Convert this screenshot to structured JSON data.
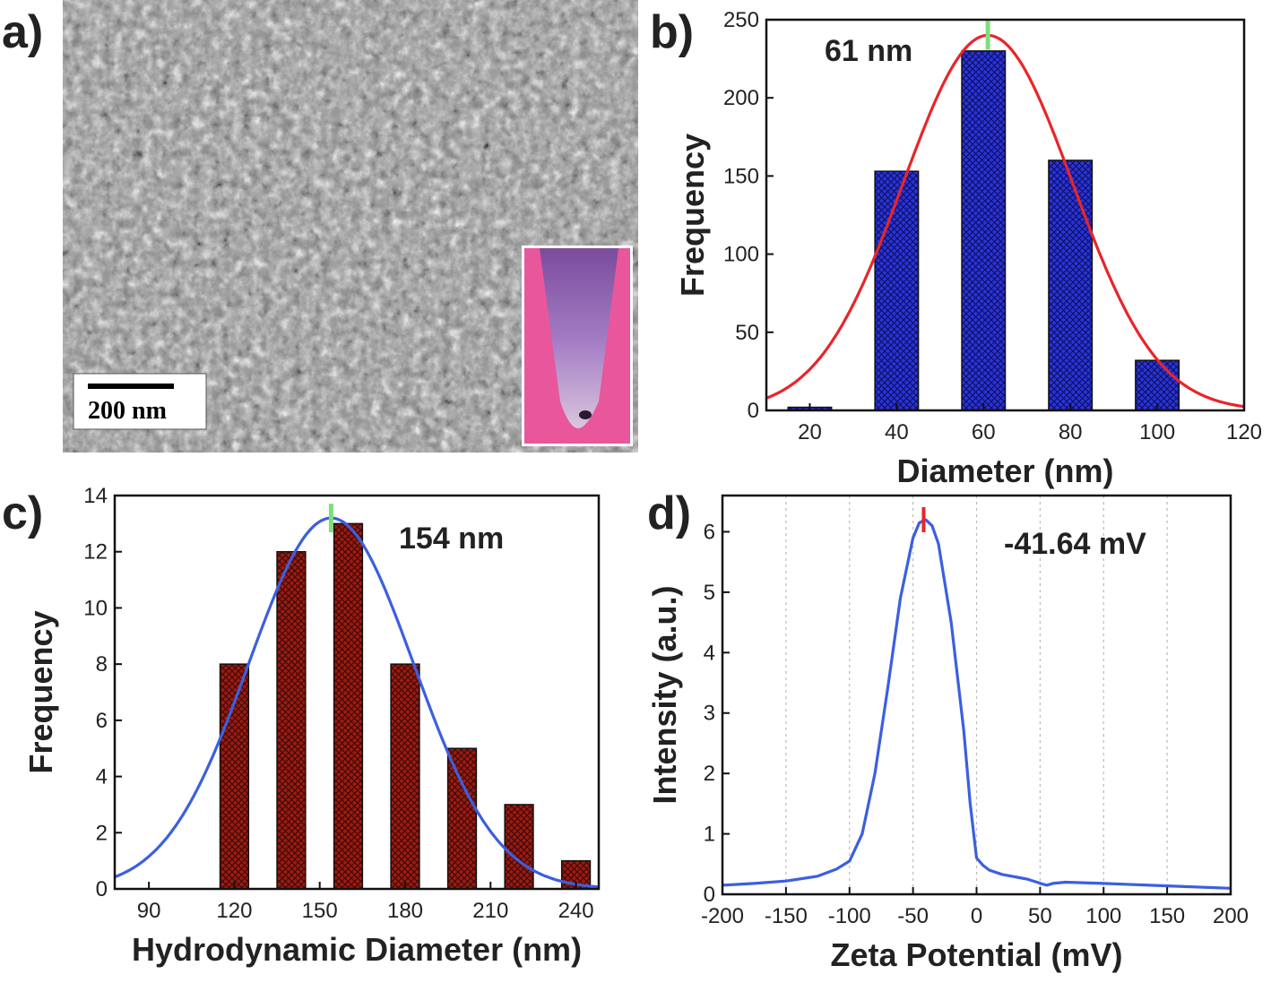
{
  "panels": {
    "a": {
      "letter": "a)",
      "scale_bar_label": "200 nm"
    },
    "b": {
      "letter": "b)"
    },
    "c": {
      "letter": "c)"
    },
    "d": {
      "letter": "d)"
    }
  },
  "colors": {
    "bar_blue": "#2b33d6",
    "bar_red": "#9b1b12",
    "fit_red": "#e8252a",
    "fit_blue": "#3b5fe0",
    "peak_marker_green": "#7be07b",
    "peak_marker_red": "#e8252a",
    "inset_pink": "#e8569c"
  },
  "chart_data": [
    {
      "id": "b",
      "type": "bar",
      "x": [
        20,
        40,
        60,
        80,
        100
      ],
      "values": [
        2,
        153,
        230,
        160,
        32
      ],
      "bar_width": 10,
      "fit": {
        "type": "gaussian",
        "center": 61,
        "amplitude": 240,
        "sigma": 19.5
      },
      "annotation": "61 nm",
      "xlabel": "Diameter (nm)",
      "ylabel": "Frequency",
      "xlim": [
        10,
        120
      ],
      "ylim": [
        0,
        250
      ],
      "xticks": [
        20,
        40,
        60,
        80,
        100,
        120
      ],
      "yticks": [
        0,
        50,
        100,
        150,
        200,
        250
      ],
      "grid": false
    },
    {
      "id": "c",
      "type": "bar",
      "x": [
        120,
        140,
        160,
        180,
        200,
        220,
        240
      ],
      "values": [
        8,
        12,
        13,
        8,
        5,
        3,
        1
      ],
      "bar_width": 10,
      "fit": {
        "type": "gaussian",
        "center": 154,
        "amplitude": 13.2,
        "sigma": 29
      },
      "annotation": "154 nm",
      "xlabel": "Hydrodynamic Diameter (nm)",
      "ylabel": "Frequency",
      "xlim": [
        78,
        248
      ],
      "ylim": [
        0,
        14
      ],
      "xticks": [
        90,
        120,
        150,
        180,
        210,
        240
      ],
      "yticks": [
        0,
        2,
        4,
        6,
        8,
        10,
        12,
        14
      ],
      "grid": false
    },
    {
      "id": "d",
      "type": "line",
      "x": [
        -200,
        -175,
        -150,
        -125,
        -110,
        -100,
        -90,
        -80,
        -70,
        -60,
        -50,
        -45,
        -40,
        -35,
        -30,
        -20,
        -10,
        -5,
        0,
        5,
        10,
        20,
        40,
        55,
        60,
        70,
        100,
        150,
        200
      ],
      "y": [
        0.15,
        0.18,
        0.22,
        0.3,
        0.42,
        0.55,
        1.0,
        2.0,
        3.4,
        4.9,
        5.9,
        6.15,
        6.2,
        6.1,
        5.8,
        4.5,
        2.7,
        1.5,
        0.6,
        0.48,
        0.4,
        0.33,
        0.25,
        0.15,
        0.18,
        0.2,
        0.18,
        0.14,
        0.1
      ],
      "annotation": "-41.64 mV",
      "peak_x": -41.64,
      "xlabel": "Zeta Potential (mV)",
      "ylabel": "Intensity (a.u.)",
      "xlim": [
        -200,
        200
      ],
      "ylim": [
        0,
        6.6
      ],
      "xticks": [
        -200,
        -150,
        -100,
        -50,
        0,
        50,
        100,
        150,
        200
      ],
      "yticks": [
        0,
        1,
        2,
        3,
        4,
        5,
        6
      ],
      "grid": true
    }
  ]
}
